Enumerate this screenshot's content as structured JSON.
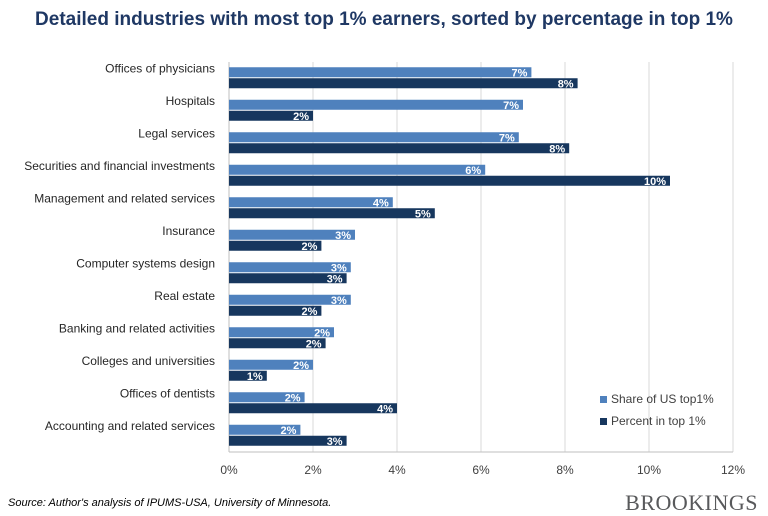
{
  "title": "Detailed industries with most top 1% earners, sorted by percentage in top 1%",
  "source": "Source: Author's analysis of IPUMS-USA, University of Minnesota.",
  "brand": "BROOKINGS",
  "colors": {
    "title": "#1f3864",
    "series1": "#4f81bd",
    "series2": "#17375e",
    "grid": "#d9d9d9"
  },
  "chart_data": {
    "type": "bar",
    "orientation": "horizontal",
    "categories": [
      "Offices of physicians",
      "Hospitals",
      "Legal services",
      "Securities and financial investments",
      "Management and related services",
      "Insurance",
      "Computer systems design",
      "Real estate",
      "Banking and related activities",
      "Colleges and universities",
      "Offices of dentists",
      "Accounting and related services"
    ],
    "series": [
      {
        "name": "Share of US top1%",
        "values": [
          7.2,
          7.0,
          6.9,
          6.1,
          3.9,
          3.0,
          2.9,
          2.9,
          2.5,
          2.0,
          1.8,
          1.7
        ],
        "labels": [
          "7%",
          "7%",
          "7%",
          "6%",
          "4%",
          "3%",
          "3%",
          "3%",
          "2%",
          "2%",
          "2%",
          "2%"
        ]
      },
      {
        "name": "Percent in top 1%",
        "values": [
          8.3,
          2.0,
          8.1,
          10.5,
          4.9,
          2.2,
          2.8,
          2.2,
          2.3,
          0.9,
          4.0,
          2.8
        ],
        "labels": [
          "8%",
          "2%",
          "8%",
          "10%",
          "5%",
          "2%",
          "3%",
          "2%",
          "2%",
          "1%",
          "4%",
          "3%"
        ]
      }
    ],
    "xlim": [
      0,
      12
    ],
    "xticks": [
      "0%",
      "2%",
      "4%",
      "6%",
      "8%",
      "10%",
      "12%"
    ],
    "grid": true,
    "legend_position": "bottom-right"
  }
}
